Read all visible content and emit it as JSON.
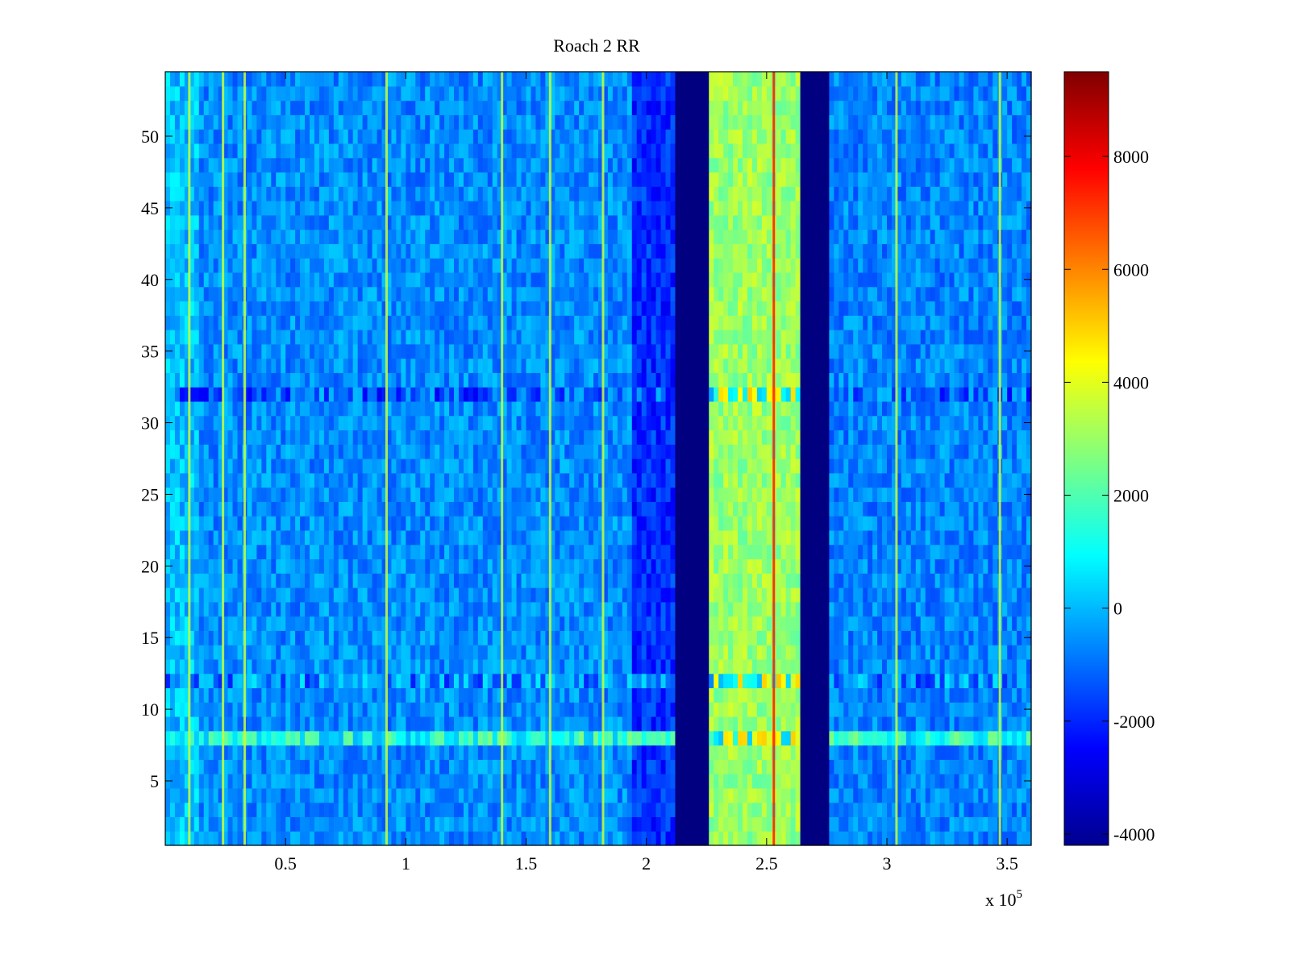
{
  "chart_data": {
    "type": "heatmap",
    "title": "Roach 2 RR",
    "xlabel": "",
    "ylabel": "",
    "x_exponent_label": "x 10",
    "x_exponent": "5",
    "xlim": [
      0,
      3.6
    ],
    "ylim": [
      0.5,
      54.5
    ],
    "x_ticks": [
      {
        "value": 0.5,
        "label": "0.5"
      },
      {
        "value": 1,
        "label": "1"
      },
      {
        "value": 1.5,
        "label": "1.5"
      },
      {
        "value": 2,
        "label": "2"
      },
      {
        "value": 2.5,
        "label": "2.5"
      },
      {
        "value": 3,
        "label": "3"
      },
      {
        "value": 3.5,
        "label": "3.5"
      }
    ],
    "y_ticks": [
      {
        "value": 5,
        "label": "5"
      },
      {
        "value": 10,
        "label": "10"
      },
      {
        "value": 15,
        "label": "15"
      },
      {
        "value": 20,
        "label": "20"
      },
      {
        "value": 25,
        "label": "25"
      },
      {
        "value": 30,
        "label": "30"
      },
      {
        "value": 35,
        "label": "35"
      },
      {
        "value": 40,
        "label": "40"
      },
      {
        "value": 45,
        "label": "45"
      },
      {
        "value": 50,
        "label": "50"
      }
    ],
    "rows": 54,
    "colormap": "jet",
    "clim": [
      -4200,
      9500
    ],
    "colorbar_ticks": [
      {
        "value": 8000,
        "label": "8000"
      },
      {
        "value": 6000,
        "label": "6000"
      },
      {
        "value": 4000,
        "label": "4000"
      },
      {
        "value": 2000,
        "label": "2000"
      },
      {
        "value": 0,
        "label": "0"
      },
      {
        "value": -2000,
        "label": "-2000"
      },
      {
        "value": -4000,
        "label": "-4000"
      }
    ],
    "baseline_value": -600,
    "regions": [
      {
        "x_start": 0.0,
        "x_end": 0.15,
        "value": 100
      },
      {
        "x_start": 0.15,
        "x_end": 1.95,
        "value": -600
      },
      {
        "x_start": 1.95,
        "x_end": 2.12,
        "value": -1900
      },
      {
        "x_start": 2.12,
        "x_end": 2.27,
        "value": -4200
      },
      {
        "x_start": 2.27,
        "x_end": 2.64,
        "value": 3000
      },
      {
        "x_start": 2.64,
        "x_end": 2.77,
        "value": -4200
      },
      {
        "x_start": 2.77,
        "x_end": 3.6,
        "value": -700
      }
    ],
    "row_features": [
      {
        "row": 32,
        "description_value": -1800
      },
      {
        "row": 12,
        "description_value": -1300
      },
      {
        "row": 8,
        "description_value": 700
      }
    ],
    "hot_lines_x": [
      0.1,
      0.24,
      0.33,
      0.92,
      1.4,
      1.6,
      1.82,
      2.53,
      3.04,
      3.47
    ]
  }
}
